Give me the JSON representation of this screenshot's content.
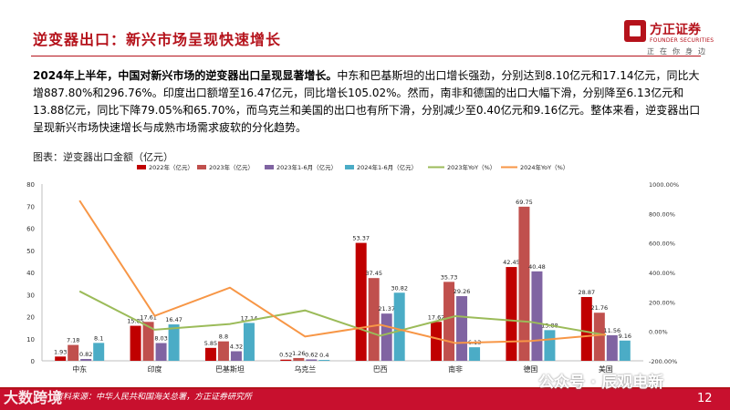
{
  "header": {
    "title": "逆变器出口：新兴市场呈现快速增长"
  },
  "logo": {
    "cn": "方正证券",
    "en": "FOUNDER SECURITIES",
    "slogan": "正在你身边"
  },
  "body": {
    "bold": "2024年上半年，中国对新兴市场的逆变器出口呈现显著增长。",
    "rest": "中东和巴基斯坦的出口增长强劲，分别达到8.10亿元和17.14亿元，同比大增887.80%和296.76%。印度出口额增至16.47亿元，同比增长105.02%。然而，南非和德国的出口大幅下滑，分别降至6.13亿元和13.88亿元，同比下降79.05%和65.70%，而乌克兰和美国的出口也有所下滑，分别减少至0.40亿元和9.16亿元。整体来看，逆变器出口呈现新兴市场快速增长与成熟市场需求疲软的分化趋势。"
  },
  "figure": {
    "title": "图表：逆变器出口金额（亿元）"
  },
  "footer": {
    "source": "资料来源：中华人民共和国海关总署，方正证券研究所",
    "page": "12",
    "watermark_left": "大数跨境",
    "watermark_right": "公众号 · 辰观电新"
  },
  "colors": {
    "accent": "#b5121b",
    "bar2022": "#c00000",
    "bar2023": "#c0504d",
    "bar2023h1": "#8064a2",
    "bar2024h1": "#4bacc6",
    "line2023": "#9bbb59",
    "line2024": "#f79646"
  },
  "chart_data": {
    "type": "bar",
    "categories": [
      "中东",
      "印度",
      "巴基斯坦",
      "乌克兰",
      "巴西",
      "南非",
      "德国",
      "美国"
    ],
    "series": [
      {
        "name": "2022年（亿元）",
        "type": "bar",
        "axis": "left",
        "values": [
          1.93,
          15.85,
          5.85,
          0.52,
          53.37,
          17.62,
          42.45,
          28.87
        ]
      },
      {
        "name": "2023年（亿元）",
        "type": "bar",
        "axis": "left",
        "values": [
          7.18,
          17.61,
          8.8,
          1.26,
          37.45,
          35.73,
          69.75,
          21.76
        ]
      },
      {
        "name": "2023年1-6月（亿元）",
        "type": "bar",
        "axis": "left",
        "values": [
          0.82,
          8.03,
          4.32,
          0.62,
          21.37,
          29.26,
          40.48,
          11.56
        ]
      },
      {
        "name": "2024年1-6月（亿元）",
        "type": "bar",
        "axis": "left",
        "values": [
          8.1,
          16.47,
          17.14,
          0.4,
          30.82,
          6.13,
          13.88,
          9.16
        ]
      },
      {
        "name": "2023年YoY（%）",
        "type": "line",
        "axis": "right",
        "values": [
          272,
          11,
          50,
          142,
          -30,
          103,
          64,
          -25
        ]
      },
      {
        "name": "2024年YoY（%）",
        "type": "line",
        "axis": "right",
        "values": [
          887.8,
          105.02,
          296.76,
          -35,
          44,
          -79.05,
          -65.7,
          -21
        ]
      }
    ],
    "labels": [
      [
        "1.93",
        "15.85",
        "5.85",
        "0.52",
        "53.37",
        "17.62",
        "42.45",
        "28.87"
      ],
      [
        "7.18",
        "17.61",
        "8.8",
        "1.26",
        "37.45",
        "35.73",
        "69.75",
        "21.76"
      ],
      [
        "0.82",
        "8.03",
        "4.32",
        "0.62",
        "21.37",
        "29.26",
        "40.48",
        "11.56"
      ],
      [
        "8.1",
        "16.47",
        "17.14",
        "0.4",
        "30.82",
        "6.13",
        "13.88",
        "9.16"
      ]
    ],
    "ylim": [
      0,
      80
    ],
    "yticks": [
      "0",
      "10",
      "20",
      "30",
      "40",
      "50",
      "60",
      "70",
      "80"
    ],
    "y2lim": [
      -200,
      1000
    ],
    "y2ticks": [
      "-200.00%",
      "0.00%",
      "200.00%",
      "400.00%",
      "600.00%",
      "800.00%",
      "1000.00%"
    ],
    "legend_position": "top",
    "grid": false
  }
}
